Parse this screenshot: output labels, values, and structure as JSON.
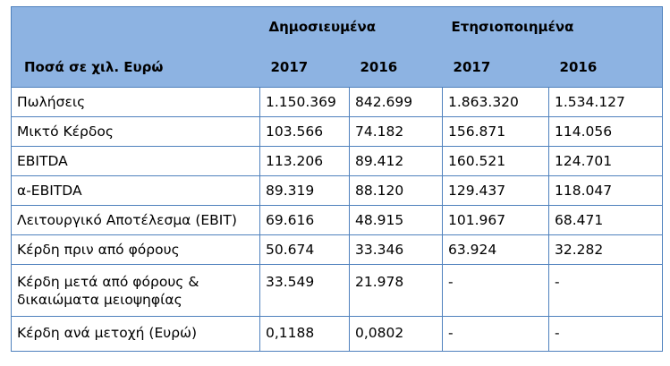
{
  "header": {
    "published_label": "Δημοσιευμένα",
    "annualized_label": "Ετησιοποιημένα",
    "amounts_label": "Ποσά  σε χιλ. Ευρώ",
    "years": [
      "2017",
      "2016",
      "2017",
      "2016"
    ]
  },
  "rows": [
    {
      "label": "Πωλήσεις",
      "values": [
        "1.150.369",
        "842.699",
        "1.863.320",
        "1.534.127"
      ]
    },
    {
      "label": "Μικτό Κέρδος",
      "values": [
        "103.566",
        "74.182",
        "156.871",
        "114.056"
      ]
    },
    {
      "label": "EBITDA",
      "values": [
        "113.206",
        "89.412",
        "160.521",
        "124.701"
      ]
    },
    {
      "label": "α-EBITDA",
      "values": [
        "89.319",
        "88.120",
        "129.437",
        "118.047"
      ]
    },
    {
      "label": "Λειτουργικό Αποτέλεσμα (EBIT)",
      "values": [
        "69.616",
        "48.915",
        "101.967",
        "68.471"
      ]
    },
    {
      "label": "Κέρδη πριν από φόρους",
      "values": [
        "50.674",
        "33.346",
        "63.924",
        "32.282"
      ]
    },
    {
      "label": "Κέρδη μετά από φόρους & δικαιώματα μειοψηφίας",
      "values": [
        "33.549",
        "21.978",
        "-",
        "-"
      ]
    },
    {
      "label": "Κέρδη ανά μετοχή (Ευρώ)",
      "values": [
        "0,1188",
        "0,0802",
        "-",
        "-"
      ]
    }
  ]
}
